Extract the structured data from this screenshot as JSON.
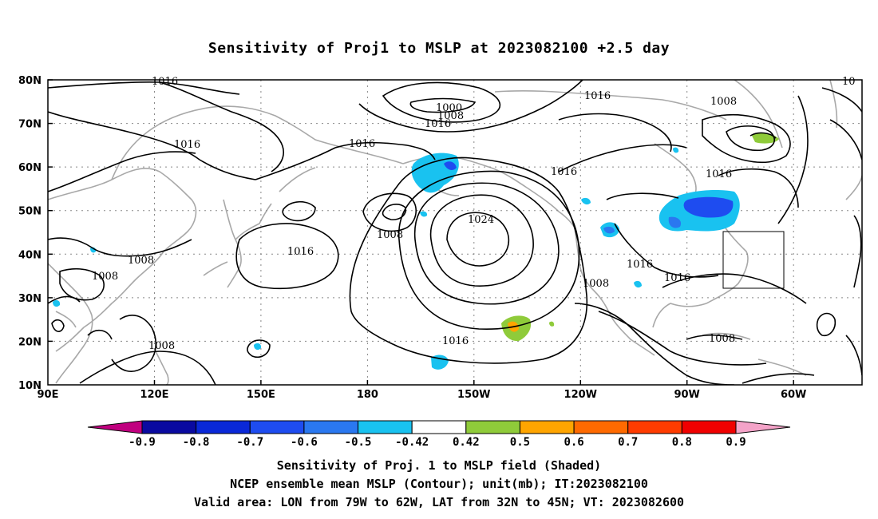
{
  "title": "Sensitivity of Proj1 to MSLP at 2023082100 +2.5 day",
  "lat_labels": [
    "80N",
    "70N",
    "60N",
    "50N",
    "40N",
    "30N",
    "20N",
    "10N"
  ],
  "lon_labels": [
    "90E",
    "120E",
    "150E",
    "180",
    "150W",
    "120W",
    "90W",
    "60W"
  ],
  "contour_labels": [
    "1016",
    "1016",
    "1016",
    "1000",
    "1008",
    "1016",
    "1016",
    "1016",
    "1008",
    "1016",
    "1016",
    "1008",
    "1024",
    "1016",
    "1008",
    "1016",
    "1008",
    "1016",
    "1008",
    "1008",
    "1008",
    "1016",
    "1008",
    "10"
  ],
  "colorbar": {
    "labels": [
      "-0.9",
      "-0.8",
      "-0.7",
      "-0.6",
      "-0.5",
      "-0.42",
      "0.42",
      "0.5",
      "0.6",
      "0.7",
      "0.8",
      "0.9"
    ],
    "colors": [
      "#c0007f",
      "#0a0aa0",
      "#0a28d8",
      "#1e4cf0",
      "#2a78f0",
      "#19c2f0",
      "#ffffff",
      "#8fcb3a",
      "#ffa500",
      "#ff6a00",
      "#ff3c00",
      "#f00000",
      "#f4a3c8"
    ]
  },
  "captions": [
    "Sensitivity of Proj. 1 to MSLP field (Shaded)",
    "NCEP ensemble mean MSLP (Contour); unit(mb); IT:2023082100",
    "Valid area: LON from 79W to 62W, LAT from 32N to 45N; VT: 2023082600"
  ]
}
